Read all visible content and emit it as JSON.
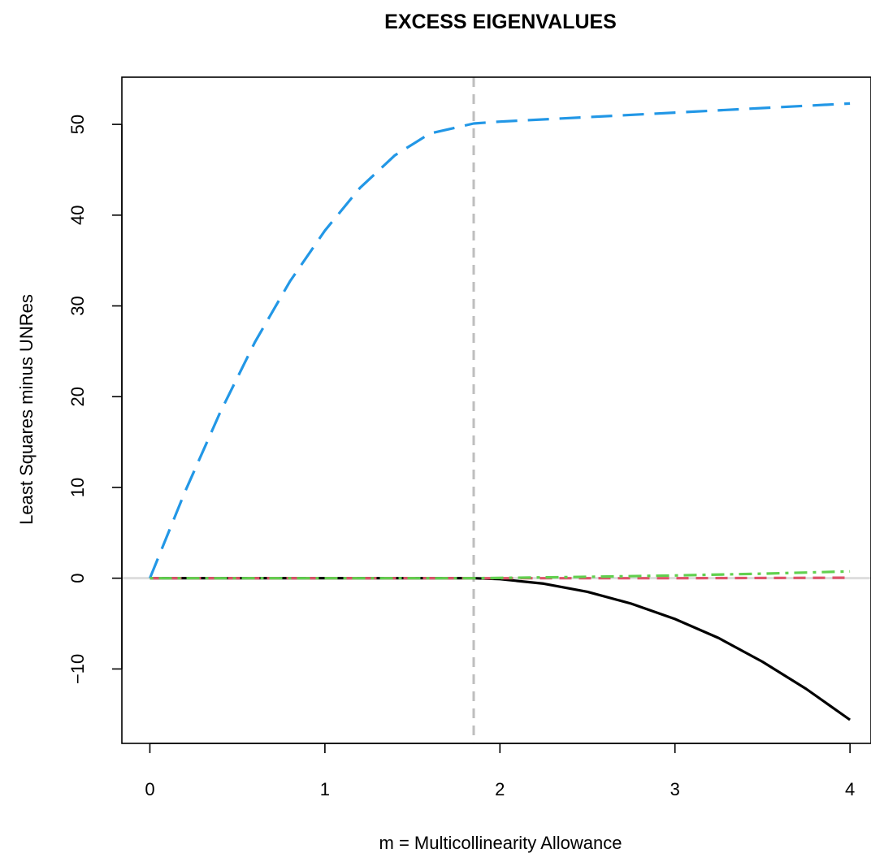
{
  "chart_data": {
    "type": "line",
    "title": "EXCESS EIGENVALUES",
    "xlabel": "m = Multicollinearity Allowance",
    "ylabel": "Least Squares minus UNRes",
    "xlim": [
      -0.16,
      4.12
    ],
    "ylim": [
      -18.2,
      55.2
    ],
    "xticks": [
      0,
      1,
      2,
      3,
      4
    ],
    "xtick_labels": [
      "0",
      "1",
      "2",
      "3",
      "4"
    ],
    "yticks": [
      -10,
      0,
      10,
      20,
      30,
      40,
      50
    ],
    "ytick_labels": [
      "−10",
      "0",
      "10",
      "20",
      "30",
      "40",
      "50"
    ],
    "grid": false,
    "legend": "none",
    "reference_lines": [
      {
        "orientation": "horizontal",
        "value": 0,
        "color": "#dddddd",
        "style": "solid"
      },
      {
        "orientation": "vertical",
        "value": 1.85,
        "color": "#bebebe",
        "style": "dashed"
      }
    ],
    "series": [
      {
        "color": "#2297E6",
        "style": "long-dash",
        "x": [
          0,
          0.2,
          0.4,
          0.6,
          0.8,
          1.0,
          1.2,
          1.4,
          1.6,
          1.85,
          2.0,
          2.5,
          3.0,
          3.5,
          4.0
        ],
        "y": [
          0,
          9.5,
          18.2,
          26.0,
          32.7,
          38.3,
          43.0,
          46.6,
          49.0,
          50.1,
          50.3,
          50.8,
          51.3,
          51.8,
          52.3
        ]
      },
      {
        "color": "#000000",
        "style": "solid",
        "x": [
          0,
          1.85,
          2.0,
          2.25,
          2.5,
          2.75,
          3.0,
          3.25,
          3.5,
          3.75,
          4.0
        ],
        "y": [
          0,
          0,
          -0.1,
          -0.6,
          -1.5,
          -2.8,
          -4.5,
          -6.6,
          -9.2,
          -12.2,
          -15.6
        ]
      },
      {
        "color": "#DF536B",
        "style": "dashed",
        "x": [
          0,
          1.85,
          2.5,
          3.0,
          4.0
        ],
        "y": [
          0,
          0,
          0,
          0,
          0.05
        ]
      },
      {
        "color": "#61D04F",
        "style": "dot-dash",
        "x": [
          0,
          1.85,
          2.5,
          3.0,
          3.5,
          4.0
        ],
        "y": [
          0,
          0,
          0.15,
          0.3,
          0.5,
          0.75
        ]
      }
    ]
  }
}
